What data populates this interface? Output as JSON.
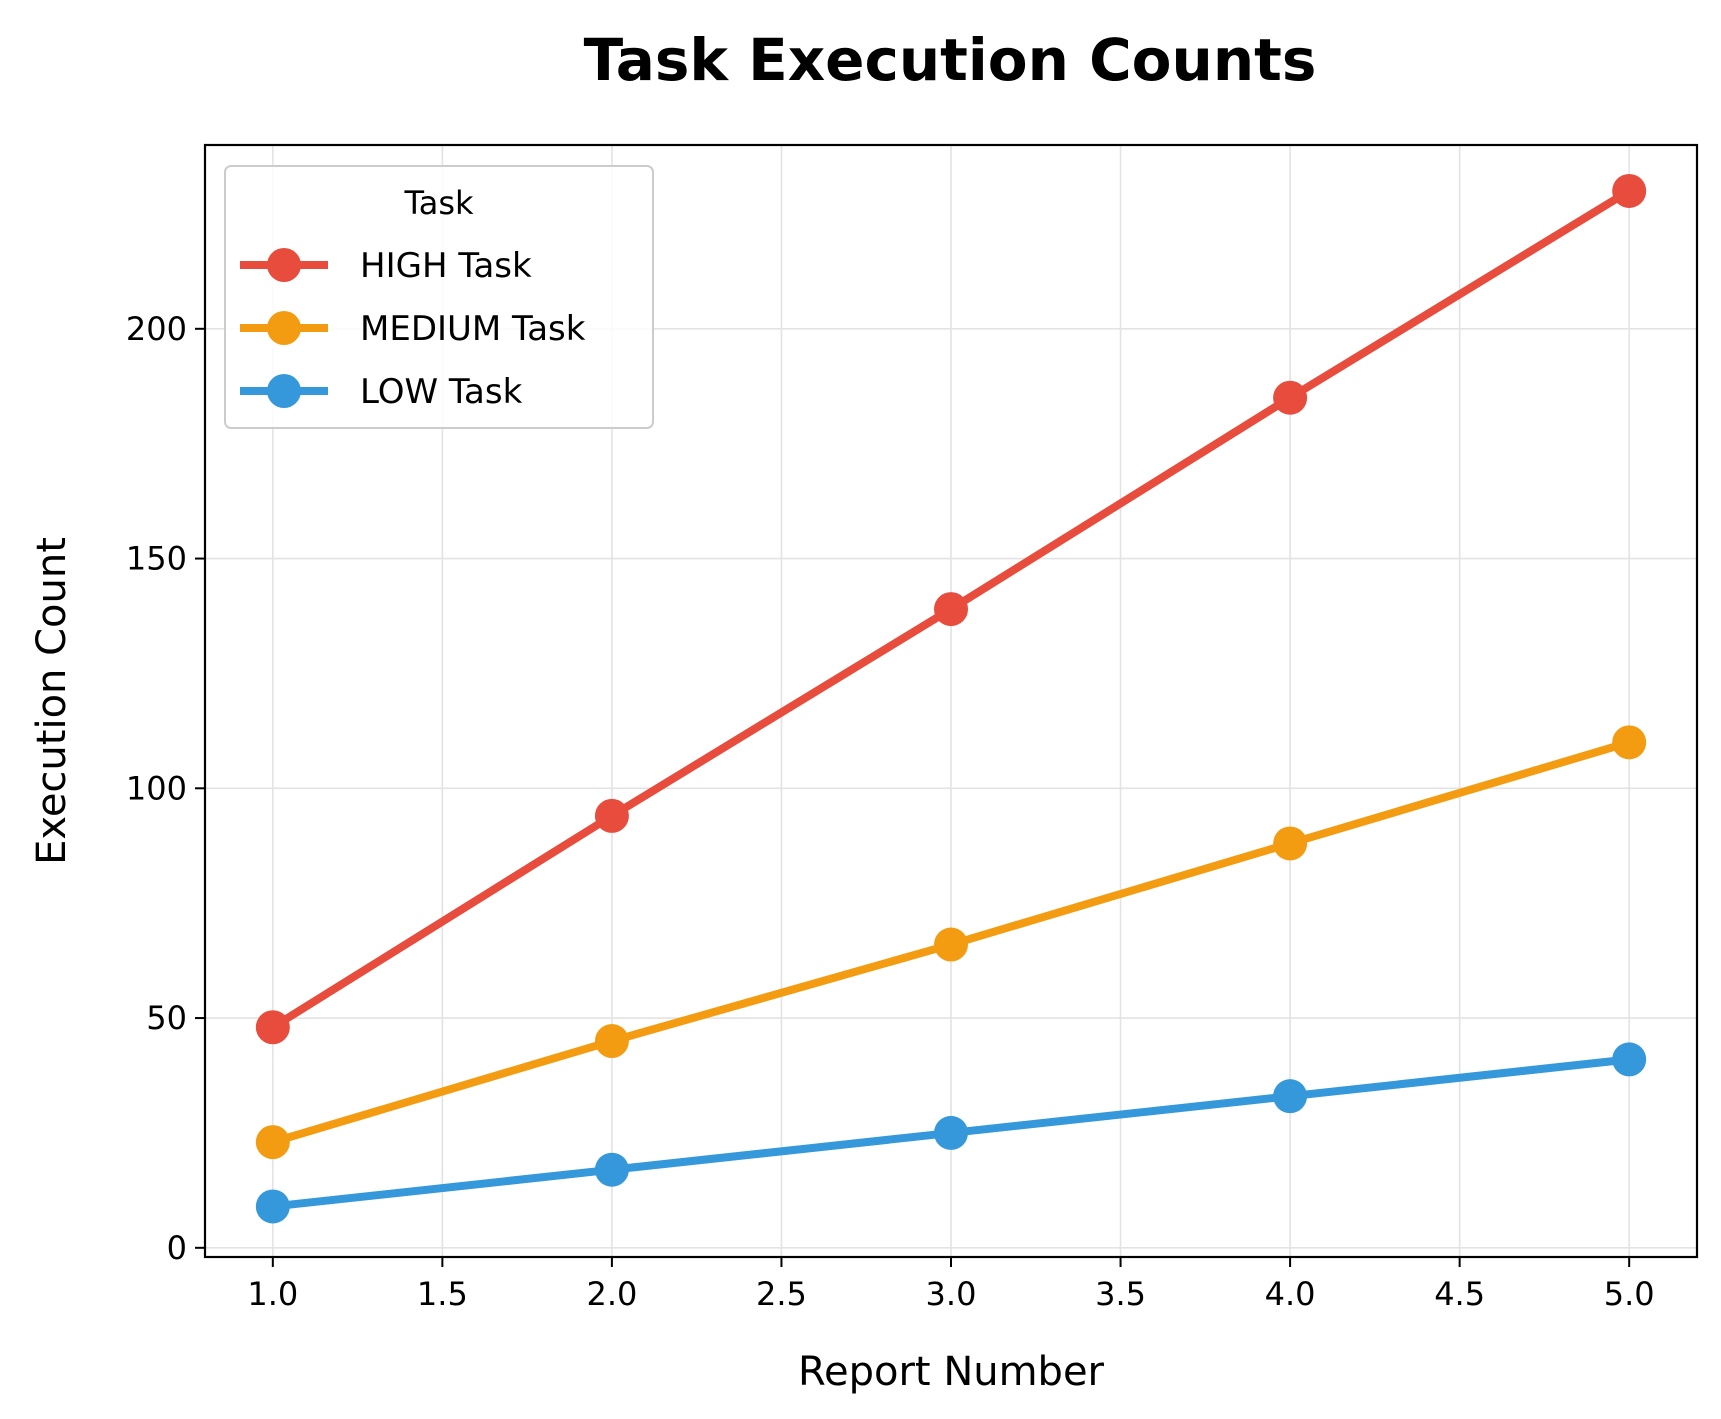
{
  "chart_data": {
    "type": "line",
    "title": "Task Execution Counts",
    "xlabel": "Report Number",
    "ylabel": "Execution Count",
    "xlim": [
      0.8,
      5.2
    ],
    "ylim": [
      -2,
      240
    ],
    "xticks": [
      "1.0",
      "1.5",
      "2.0",
      "2.5",
      "3.0",
      "3.5",
      "4.0",
      "4.5",
      "5.0"
    ],
    "yticks": [
      "0",
      "50",
      "100",
      "150",
      "200"
    ],
    "grid": true,
    "legend": {
      "title": "Task",
      "placement": "top-left"
    },
    "x": [
      1,
      2,
      3,
      4,
      5
    ],
    "series": [
      {
        "name": "HIGH Task",
        "color": "#e74c3c",
        "values": [
          48,
          94,
          139,
          185,
          230
        ]
      },
      {
        "name": "MEDIUM Task",
        "color": "#f39c12",
        "values": [
          23,
          45,
          66,
          88,
          110
        ]
      },
      {
        "name": "LOW Task",
        "color": "#3498db",
        "values": [
          9,
          17,
          25,
          33,
          41
        ]
      }
    ]
  }
}
